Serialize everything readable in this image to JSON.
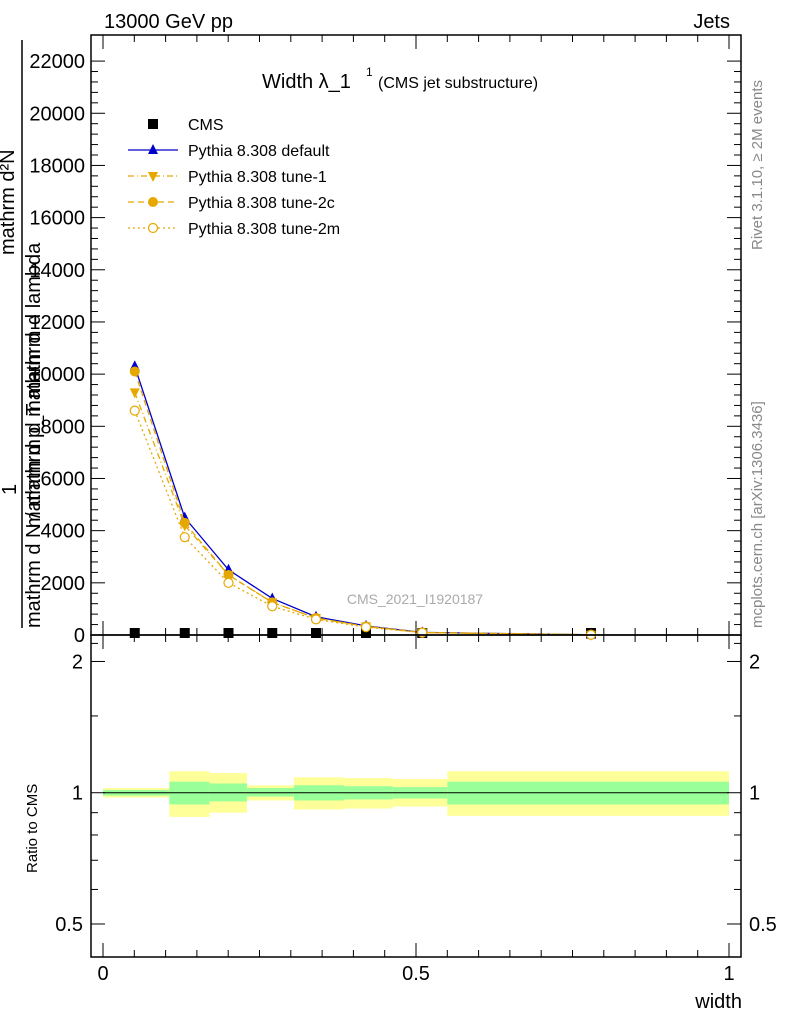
{
  "header": {
    "left": "13000 GeV pp",
    "right": "Jets"
  },
  "title": {
    "main": "Width λ_1",
    "superscript": "1",
    "sub": "(CMS jet substructure)"
  },
  "watermark": "CMS_2021_I1920187",
  "side_labels": {
    "rivet": "Rivet 3.1.10, ≥ 2M events",
    "mcplots": "mcplots.cern.ch [arXiv:1306.3436]"
  },
  "ylabel": {
    "numerator": "mathrm d²N",
    "denominator": "mathrm d p_T mathrm d lambda",
    "overlay_one": "1",
    "overlay_frac": "mathrm d N / mathrm d mathrm d"
  },
  "ratio_ylabel": "Ratio to CMS",
  "xlabel": "width",
  "colors": {
    "cms": "#000000",
    "default": "#0000cc",
    "tune": "#e6a800",
    "band_inner": "#99ff99",
    "band_outer": "#ffff99"
  },
  "legend": [
    {
      "name": "CMS",
      "marker": "square",
      "style": "none"
    },
    {
      "name": "Pythia 8.308 default",
      "marker": "triangle-up",
      "style": "solid"
    },
    {
      "name": "Pythia 8.308 tune-1",
      "marker": "triangle-down",
      "style": "dashdot"
    },
    {
      "name": "Pythia 8.308 tune-2c",
      "marker": "circle",
      "style": "dashed"
    },
    {
      "name": "Pythia 8.308 tune-2m",
      "marker": "circle-open",
      "style": "dotted"
    }
  ],
  "chart_data": {
    "type": "line",
    "x": [
      0.05,
      0.13,
      0.2,
      0.27,
      0.34,
      0.42,
      0.51,
      0.78
    ],
    "xlim": [
      -0.02,
      1.02
    ],
    "ylim": [
      0,
      23000
    ],
    "yticks": [
      0,
      2000,
      4000,
      6000,
      8000,
      10000,
      12000,
      14000,
      16000,
      18000,
      20000,
      22000
    ],
    "ytick_labels": [
      "0",
      "2000",
      "4000",
      "6000",
      "8000",
      "10000",
      "12000",
      "14000",
      "16000",
      "18000",
      "20000",
      "22000"
    ],
    "xticks": [
      0,
      0.5,
      1
    ],
    "xtick_labels": [
      "0",
      "0.5",
      "1"
    ],
    "series": [
      {
        "name": "CMS",
        "values": [
          0,
          0,
          0,
          0,
          0,
          0,
          0,
          0
        ]
      },
      {
        "name": "Pythia 8.308 default",
        "values": [
          10300,
          4500,
          2500,
          1400,
          700,
          350,
          100,
          10
        ]
      },
      {
        "name": "Pythia 8.308 tune-1",
        "values": [
          9300,
          4200,
          2300,
          1250,
          650,
          330,
          95,
          10
        ]
      },
      {
        "name": "Pythia 8.308 tune-2c",
        "values": [
          10100,
          4300,
          2300,
          1250,
          650,
          330,
          95,
          10
        ]
      },
      {
        "name": "Pythia 8.308 tune-2m",
        "values": [
          8600,
          3750,
          2000,
          1100,
          600,
          300,
          90,
          10
        ]
      }
    ],
    "ratio": {
      "ylim": [
        0.42,
        2.3
      ],
      "yticks": [
        0.5,
        1,
        2
      ],
      "ytick_labels": [
        "0.5",
        "1",
        "2"
      ],
      "bins": [
        {
          "x0": 0.0,
          "x1": 0.106,
          "inner": [
            0.985,
            1.015
          ],
          "outer": [
            0.975,
            1.025
          ]
        },
        {
          "x0": 0.106,
          "x1": 0.17,
          "inner": [
            0.94,
            1.06
          ],
          "outer": [
            0.88,
            1.12
          ]
        },
        {
          "x0": 0.17,
          "x1": 0.23,
          "inner": [
            0.955,
            1.05
          ],
          "outer": [
            0.9,
            1.11
          ]
        },
        {
          "x0": 0.23,
          "x1": 0.305,
          "inner": [
            0.98,
            1.025
          ],
          "outer": [
            0.96,
            1.04
          ]
        },
        {
          "x0": 0.305,
          "x1": 0.385,
          "inner": [
            0.96,
            1.04
          ],
          "outer": [
            0.915,
            1.085
          ]
        },
        {
          "x0": 0.385,
          "x1": 0.463,
          "inner": [
            0.965,
            1.035
          ],
          "outer": [
            0.92,
            1.08
          ]
        },
        {
          "x0": 0.463,
          "x1": 0.55,
          "inner": [
            0.97,
            1.03
          ],
          "outer": [
            0.93,
            1.075
          ]
        },
        {
          "x0": 0.55,
          "x1": 1.0,
          "inner": [
            0.94,
            1.06
          ],
          "outer": [
            0.885,
            1.12
          ]
        }
      ]
    }
  }
}
